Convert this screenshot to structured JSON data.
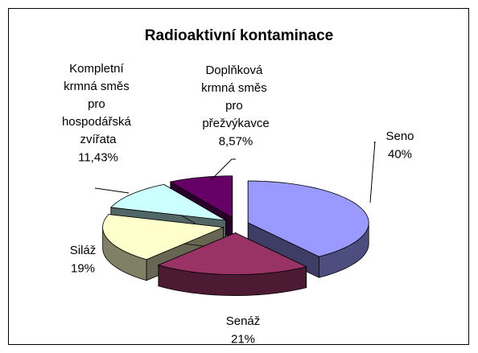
{
  "chart_data": {
    "type": "pie",
    "title": "Radioaktivní kontaminace",
    "categories": [
      "Seno",
      "Senáž",
      "Siláž",
      "Kompletní krmná směs pro hospodářská zvířata",
      "Doplňková krmná směs pro přežvýkavce"
    ],
    "values": [
      40,
      21,
      19,
      11.43,
      8.57
    ],
    "value_labels": [
      "40%",
      "21%",
      "19%",
      "11,43%",
      "8,57%"
    ],
    "colors": [
      "#9999ff",
      "#993366",
      "#ffffcc",
      "#ccffff",
      "#660066"
    ]
  }
}
